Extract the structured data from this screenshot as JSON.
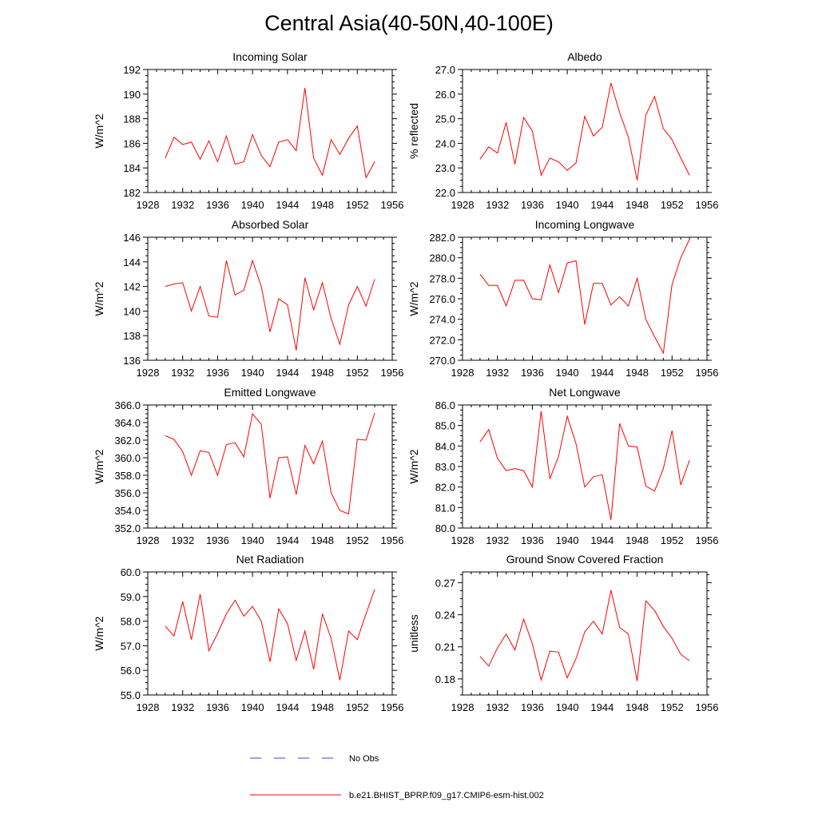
{
  "title": "Central Asia(40-50N,40-100E)",
  "colors": {
    "series": "#ff0000",
    "obs": "#3344cc",
    "axis": "#000000"
  },
  "legend": {
    "obs_label": "No Obs",
    "model_label": "b.e21.BHIST_BPRP.f09_g17.CMIP6-esm-hist.002"
  },
  "chart_data": [
    {
      "type": "line",
      "title": "Incoming Solar",
      "ylabel": "W/m^2",
      "xlim": [
        1928,
        1956
      ],
      "xticks": [
        1928,
        1932,
        1936,
        1940,
        1944,
        1948,
        1952,
        1956
      ],
      "xtick_labels": [
        "1928",
        "1932",
        "1936",
        "1940",
        "1944",
        "1948",
        "1952",
        "1956"
      ],
      "ylim": [
        182,
        192
      ],
      "yticks": [
        182,
        184,
        186,
        188,
        190,
        192
      ],
      "ytick_labels": [
        "182",
        "184",
        "186",
        "188",
        "190",
        "192"
      ],
      "x": [
        1930,
        1931,
        1932,
        1933,
        1934,
        1935,
        1936,
        1937,
        1938,
        1939,
        1940,
        1941,
        1942,
        1943,
        1944,
        1945,
        1946,
        1947,
        1948,
        1949,
        1950,
        1951,
        1952,
        1953,
        1954
      ],
      "values": [
        184.8,
        186.5,
        185.9,
        186.1,
        184.7,
        186.2,
        184.5,
        186.6,
        184.3,
        184.5,
        186.7,
        185.0,
        184.1,
        186.1,
        186.3,
        185.4,
        190.5,
        184.8,
        183.4,
        186.3,
        185.1,
        186.4,
        187.4,
        183.2,
        184.5
      ]
    },
    {
      "type": "line",
      "title": "Albedo",
      "ylabel": "% reflected",
      "xlim": [
        1928,
        1956
      ],
      "xticks": [
        1928,
        1932,
        1936,
        1940,
        1944,
        1948,
        1952,
        1956
      ],
      "xtick_labels": [
        "1928",
        "1932",
        "1936",
        "1940",
        "1944",
        "1948",
        "1952",
        "1956"
      ],
      "ylim": [
        22,
        27
      ],
      "yticks": [
        22,
        23,
        24,
        25,
        26,
        27
      ],
      "ytick_labels": [
        "22.0",
        "23.0",
        "24.0",
        "25.0",
        "26.0",
        "27.0"
      ],
      "x": [
        1930,
        1931,
        1932,
        1933,
        1934,
        1935,
        1936,
        1937,
        1938,
        1939,
        1940,
        1941,
        1942,
        1943,
        1944,
        1945,
        1946,
        1947,
        1948,
        1949,
        1950,
        1951,
        1952,
        1953,
        1954
      ],
      "values": [
        23.35,
        23.85,
        23.6,
        24.85,
        23.15,
        25.05,
        24.5,
        22.7,
        23.4,
        23.25,
        22.9,
        23.2,
        25.1,
        24.3,
        24.65,
        26.45,
        25.25,
        24.25,
        22.5,
        25.15,
        25.9,
        24.6,
        24.15,
        23.4,
        22.7
      ]
    },
    {
      "type": "line",
      "title": "Absorbed Solar",
      "ylabel": "W/m^2",
      "xlim": [
        1928,
        1956
      ],
      "xticks": [
        1928,
        1932,
        1936,
        1940,
        1944,
        1948,
        1952,
        1956
      ],
      "xtick_labels": [
        "1928",
        "1932",
        "1936",
        "1940",
        "1944",
        "1948",
        "1952",
        "1956"
      ],
      "ylim": [
        136,
        146
      ],
      "yticks": [
        136,
        138,
        140,
        142,
        144,
        146
      ],
      "ytick_labels": [
        "136",
        "138",
        "140",
        "142",
        "144",
        "146"
      ],
      "x": [
        1930,
        1931,
        1932,
        1933,
        1934,
        1935,
        1936,
        1937,
        1938,
        1939,
        1940,
        1941,
        1942,
        1943,
        1944,
        1945,
        1946,
        1947,
        1948,
        1949,
        1950,
        1951,
        1952,
        1953,
        1954
      ],
      "values": [
        142.0,
        142.2,
        142.3,
        140.0,
        142.0,
        139.6,
        139.5,
        144.1,
        141.3,
        141.7,
        144.1,
        142.0,
        138.3,
        141.0,
        140.5,
        136.8,
        142.7,
        140.1,
        142.3,
        139.4,
        137.3,
        140.5,
        142.0,
        140.4,
        142.6
      ]
    },
    {
      "type": "line",
      "title": "Incoming Longwave",
      "ylabel": "W/m^2",
      "xlim": [
        1928,
        1956
      ],
      "xticks": [
        1928,
        1932,
        1936,
        1940,
        1944,
        1948,
        1952,
        1956
      ],
      "xtick_labels": [
        "1928",
        "1932",
        "1936",
        "1940",
        "1944",
        "1948",
        "1952",
        "1956"
      ],
      "ylim": [
        270,
        282
      ],
      "yticks": [
        270,
        272,
        274,
        276,
        278,
        280,
        282
      ],
      "ytick_labels": [
        "270.0",
        "272.0",
        "274.0",
        "276.0",
        "278.0",
        "280.0",
        "282.0"
      ],
      "x": [
        1930,
        1931,
        1932,
        1933,
        1934,
        1935,
        1936,
        1937,
        1938,
        1939,
        1940,
        1941,
        1942,
        1943,
        1944,
        1945,
        1946,
        1947,
        1948,
        1949,
        1950,
        1951,
        1952,
        1953,
        1954
      ],
      "values": [
        278.4,
        277.3,
        277.3,
        275.3,
        277.8,
        277.8,
        276.0,
        275.9,
        279.3,
        276.6,
        279.5,
        279.7,
        273.5,
        277.5,
        277.5,
        275.4,
        276.2,
        275.3,
        278.0,
        274.0,
        272.3,
        270.7,
        277.4,
        280.0,
        281.8
      ]
    },
    {
      "type": "line",
      "title": "Emitted Longwave",
      "ylabel": "W/m^2",
      "xlim": [
        1928,
        1956
      ],
      "xticks": [
        1928,
        1932,
        1936,
        1940,
        1944,
        1948,
        1952,
        1956
      ],
      "xtick_labels": [
        "1928",
        "1932",
        "1936",
        "1940",
        "1944",
        "1948",
        "1952",
        "1956"
      ],
      "ylim": [
        352,
        366
      ],
      "yticks": [
        352,
        354,
        356,
        358,
        360,
        362,
        364,
        366
      ],
      "ytick_labels": [
        "352.0",
        "354.0",
        "356.0",
        "358.0",
        "360.0",
        "362.0",
        "364.0",
        "366.0"
      ],
      "x": [
        1930,
        1931,
        1932,
        1933,
        1934,
        1935,
        1936,
        1937,
        1938,
        1939,
        1940,
        1941,
        1942,
        1943,
        1944,
        1945,
        1946,
        1947,
        1948,
        1949,
        1950,
        1951,
        1952,
        1953,
        1954
      ],
      "values": [
        362.5,
        362.1,
        360.7,
        358.0,
        360.8,
        360.6,
        358.0,
        361.5,
        361.7,
        360.1,
        365.0,
        363.8,
        355.4,
        360.0,
        360.1,
        355.8,
        361.4,
        359.3,
        361.9,
        356.0,
        354.0,
        353.6,
        362.1,
        362.0,
        365.1
      ]
    },
    {
      "type": "line",
      "title": "Net Longwave",
      "ylabel": "W/m^2",
      "xlim": [
        1928,
        1956
      ],
      "xticks": [
        1928,
        1932,
        1936,
        1940,
        1944,
        1948,
        1952,
        1956
      ],
      "xtick_labels": [
        "1928",
        "1932",
        "1936",
        "1940",
        "1944",
        "1948",
        "1952",
        "1956"
      ],
      "ylim": [
        80,
        86
      ],
      "yticks": [
        80,
        81,
        82,
        83,
        84,
        85,
        86
      ],
      "ytick_labels": [
        "80.0",
        "81.0",
        "82.0",
        "83.0",
        "84.0",
        "85.0",
        "86.0"
      ],
      "x": [
        1930,
        1931,
        1932,
        1933,
        1934,
        1935,
        1936,
        1937,
        1938,
        1939,
        1940,
        1941,
        1942,
        1943,
        1944,
        1945,
        1946,
        1947,
        1948,
        1949,
        1950,
        1951,
        1952,
        1953,
        1954
      ],
      "values": [
        84.2,
        84.8,
        83.4,
        82.8,
        82.9,
        82.8,
        82.0,
        85.7,
        82.4,
        83.5,
        85.45,
        84.1,
        82.0,
        82.5,
        82.6,
        80.4,
        85.1,
        84.0,
        83.95,
        82.05,
        81.8,
        82.9,
        84.75,
        82.1,
        83.3
      ]
    },
    {
      "type": "line",
      "title": "Net Radiation",
      "ylabel": "W/m^2",
      "xlim": [
        1928,
        1956
      ],
      "xticks": [
        1928,
        1932,
        1936,
        1940,
        1944,
        1948,
        1952,
        1956
      ],
      "xtick_labels": [
        "1928",
        "1932",
        "1936",
        "1940",
        "1944",
        "1948",
        "1952",
        "1956"
      ],
      "ylim": [
        55,
        60
      ],
      "yticks": [
        55,
        56,
        57,
        58,
        59,
        60
      ],
      "ytick_labels": [
        "55.0",
        "56.0",
        "57.0",
        "58.0",
        "59.0",
        "60.0"
      ],
      "x": [
        1930,
        1931,
        1932,
        1933,
        1934,
        1935,
        1936,
        1937,
        1938,
        1939,
        1940,
        1941,
        1942,
        1943,
        1944,
        1945,
        1946,
        1947,
        1948,
        1949,
        1950,
        1951,
        1952,
        1953,
        1954
      ],
      "values": [
        57.8,
        57.4,
        58.8,
        57.25,
        59.1,
        56.8,
        57.5,
        58.3,
        58.85,
        58.2,
        58.6,
        58.0,
        56.35,
        58.5,
        57.9,
        56.4,
        57.6,
        56.05,
        58.3,
        57.3,
        55.6,
        57.6,
        57.25,
        58.3,
        59.3
      ]
    },
    {
      "type": "line",
      "title": "Ground Snow Covered Fraction",
      "ylabel": "unitless",
      "xlim": [
        1928,
        1956
      ],
      "xticks": [
        1928,
        1932,
        1936,
        1940,
        1944,
        1948,
        1952,
        1956
      ],
      "xtick_labels": [
        "1928",
        "1932",
        "1936",
        "1940",
        "1944",
        "1948",
        "1952",
        "1956"
      ],
      "ylim": [
        0.165,
        0.28
      ],
      "yticks": [
        0.18,
        0.21,
        0.24,
        0.27
      ],
      "ytick_labels": [
        "0.18",
        "0.21",
        "0.24",
        "0.27"
      ],
      "x": [
        1930,
        1931,
        1932,
        1933,
        1934,
        1935,
        1936,
        1937,
        1938,
        1939,
        1940,
        1941,
        1942,
        1943,
        1944,
        1945,
        1946,
        1947,
        1948,
        1949,
        1950,
        1951,
        1952,
        1953,
        1954
      ],
      "values": [
        0.201,
        0.192,
        0.209,
        0.222,
        0.207,
        0.236,
        0.213,
        0.179,
        0.206,
        0.205,
        0.181,
        0.199,
        0.224,
        0.234,
        0.222,
        0.263,
        0.228,
        0.222,
        0.178,
        0.253,
        0.244,
        0.229,
        0.218,
        0.203,
        0.197
      ]
    }
  ]
}
